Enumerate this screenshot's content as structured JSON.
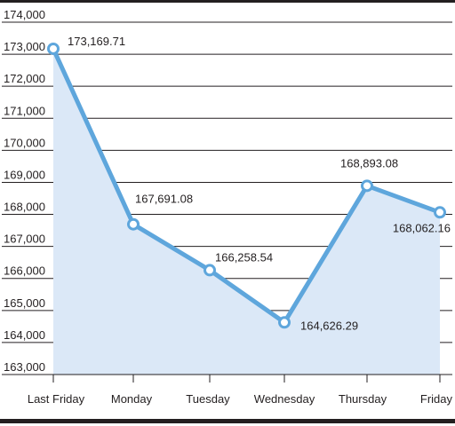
{
  "chart_data": {
    "type": "line",
    "title": "",
    "xlabel": "",
    "ylabel": "",
    "categories": [
      "Last Friday",
      "Monday",
      "Tuesday",
      "Wednesday",
      "Thursday",
      "Friday"
    ],
    "series": [
      {
        "values": [
          173169.71,
          167691.08,
          166258.54,
          164626.29,
          168893.08,
          168062.16
        ],
        "labels": [
          "173,169.71",
          "167,691.08",
          "166,258.54",
          "164,626.29",
          "168,893.08",
          "168,062.16"
        ]
      }
    ],
    "ylim": [
      163000,
      174000
    ],
    "yticks": [
      163000,
      164000,
      165000,
      166000,
      167000,
      168000,
      169000,
      170000,
      171000,
      172000,
      173000,
      174000
    ],
    "ytick_labels": [
      "163,000",
      "164,000",
      "165,000",
      "166,000",
      "167,000",
      "168,000",
      "169,000",
      "170,000",
      "171,000",
      "172,000",
      "173,000",
      "174,000"
    ],
    "grid": true,
    "legend": "none",
    "colors": {
      "line": "#5ea6dc",
      "fill": "#dbe8f7",
      "grid": "#231f20",
      "text": "#231f20"
    }
  }
}
